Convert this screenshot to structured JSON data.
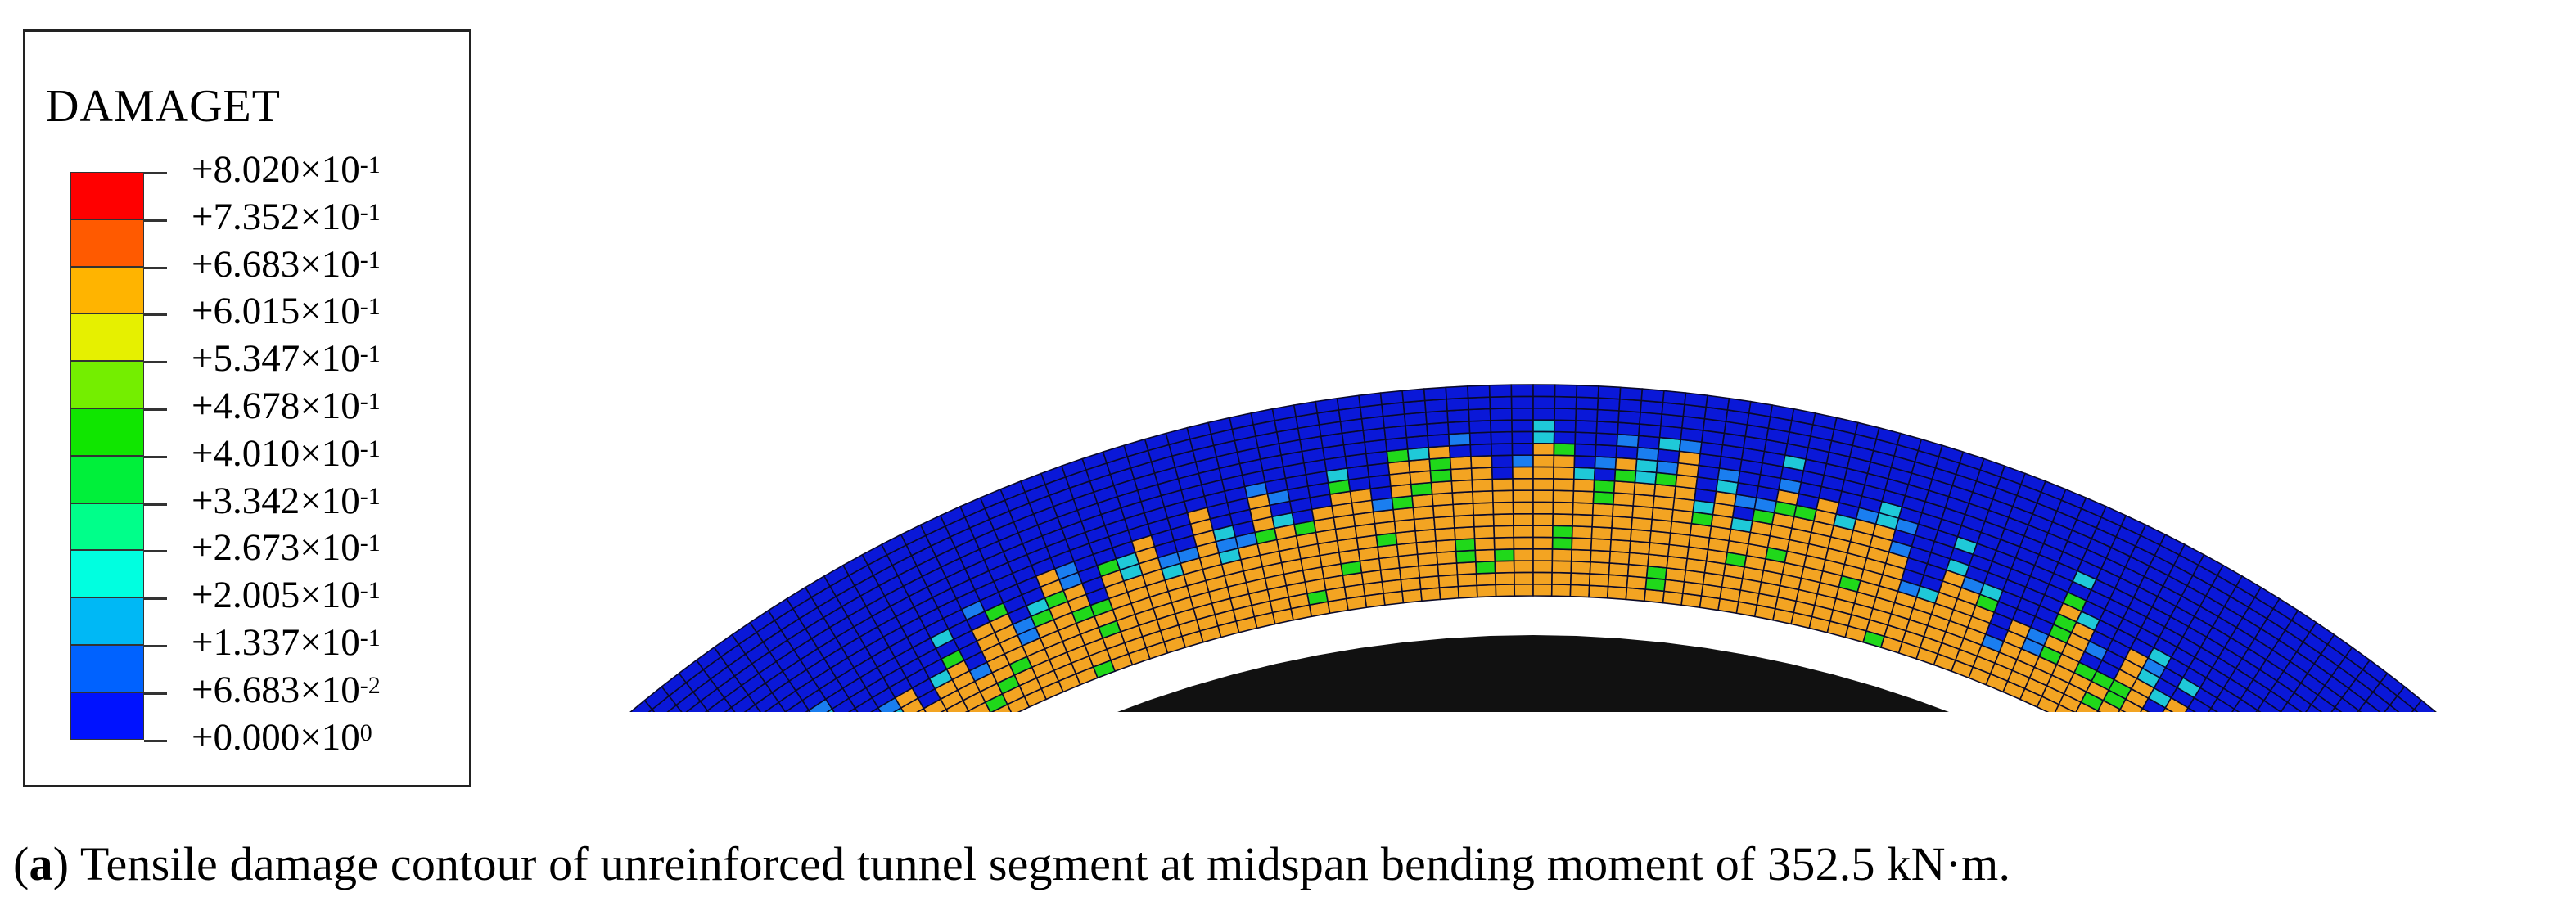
{
  "legend": {
    "title": "DAMAGET",
    "levels": [
      {
        "mantissa": "+8.020×10",
        "exp": "-1",
        "color": "#ff0000"
      },
      {
        "mantissa": "+7.352×10",
        "exp": "-1",
        "color": "#ff5a00"
      },
      {
        "mantissa": "+6.683×10",
        "exp": "-1",
        "color": "#ffb400"
      },
      {
        "mantissa": "+6.015×10",
        "exp": "-1",
        "color": "#e6f000"
      },
      {
        "mantissa": "+5.347×10",
        "exp": "-1",
        "color": "#74ee00"
      },
      {
        "mantissa": "+4.678×10",
        "exp": "-1",
        "color": "#10e600"
      },
      {
        "mantissa": "+4.010×10",
        "exp": "-1",
        "color": "#00f03a"
      },
      {
        "mantissa": "+3.342×10",
        "exp": "-1",
        "color": "#00ff8a"
      },
      {
        "mantissa": "+2.673×10",
        "exp": "-1",
        "color": "#00ffe0"
      },
      {
        "mantissa": "+2.005×10",
        "exp": "-1",
        "color": "#00b8f5"
      },
      {
        "mantissa": "+1.337×10",
        "exp": "-1",
        "color": "#0062ff"
      },
      {
        "mantissa": "+6.683×10",
        "exp": "-2",
        "color": "#0012ff"
      },
      {
        "mantissa": "+0.000×10",
        "exp": "0",
        "color": ""
      }
    ]
  },
  "colors": {
    "undamaged": "#0a18d8",
    "damaged": "#f3a422",
    "mesh": "#0a0a2a",
    "partial_green": "#20d81a",
    "partial_blue": "#1a7ef0",
    "partial_cyan": "#1fc9d8"
  },
  "caption": {
    "label": "a",
    "text": " Tensile damage contour of unreinforced tunnel segment at midspan bending moment of 352.5 kN·m."
  }
}
